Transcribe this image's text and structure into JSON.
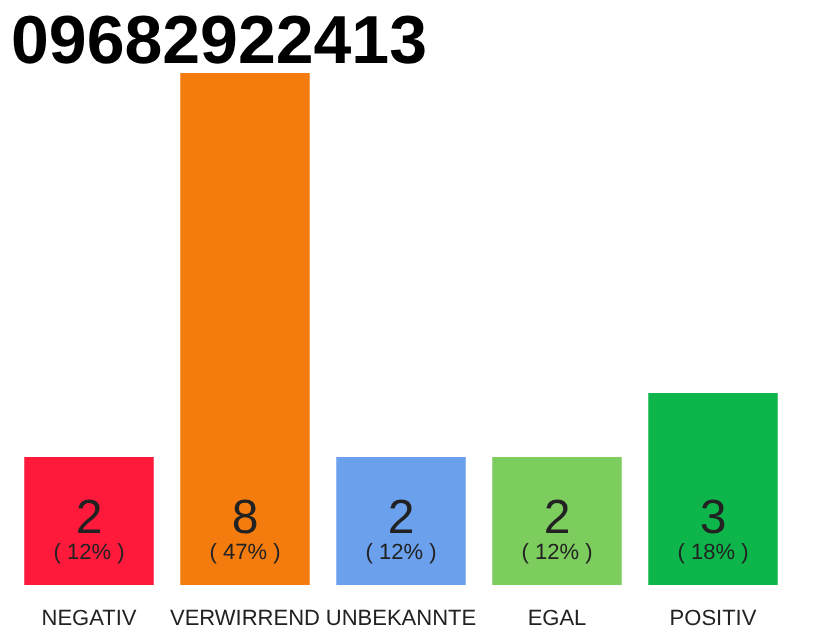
{
  "chart_data": {
    "type": "bar",
    "title": "09682922413",
    "categories": [
      "NEGATIV",
      "VERWIRREND",
      "UNBEKANNTE",
      "EGAL",
      "POSITIV"
    ],
    "values": [
      2,
      8,
      2,
      2,
      3
    ],
    "colors": [
      "#ff1a3c",
      "#f47c0f",
      "#6aa0ec",
      "#7dcc5e",
      "#0db54a"
    ],
    "data_labels": true,
    "annotations": [
      "( 12% )",
      "( 47% )",
      "( 12% )",
      "( 12% )",
      "( 18% )"
    ]
  }
}
